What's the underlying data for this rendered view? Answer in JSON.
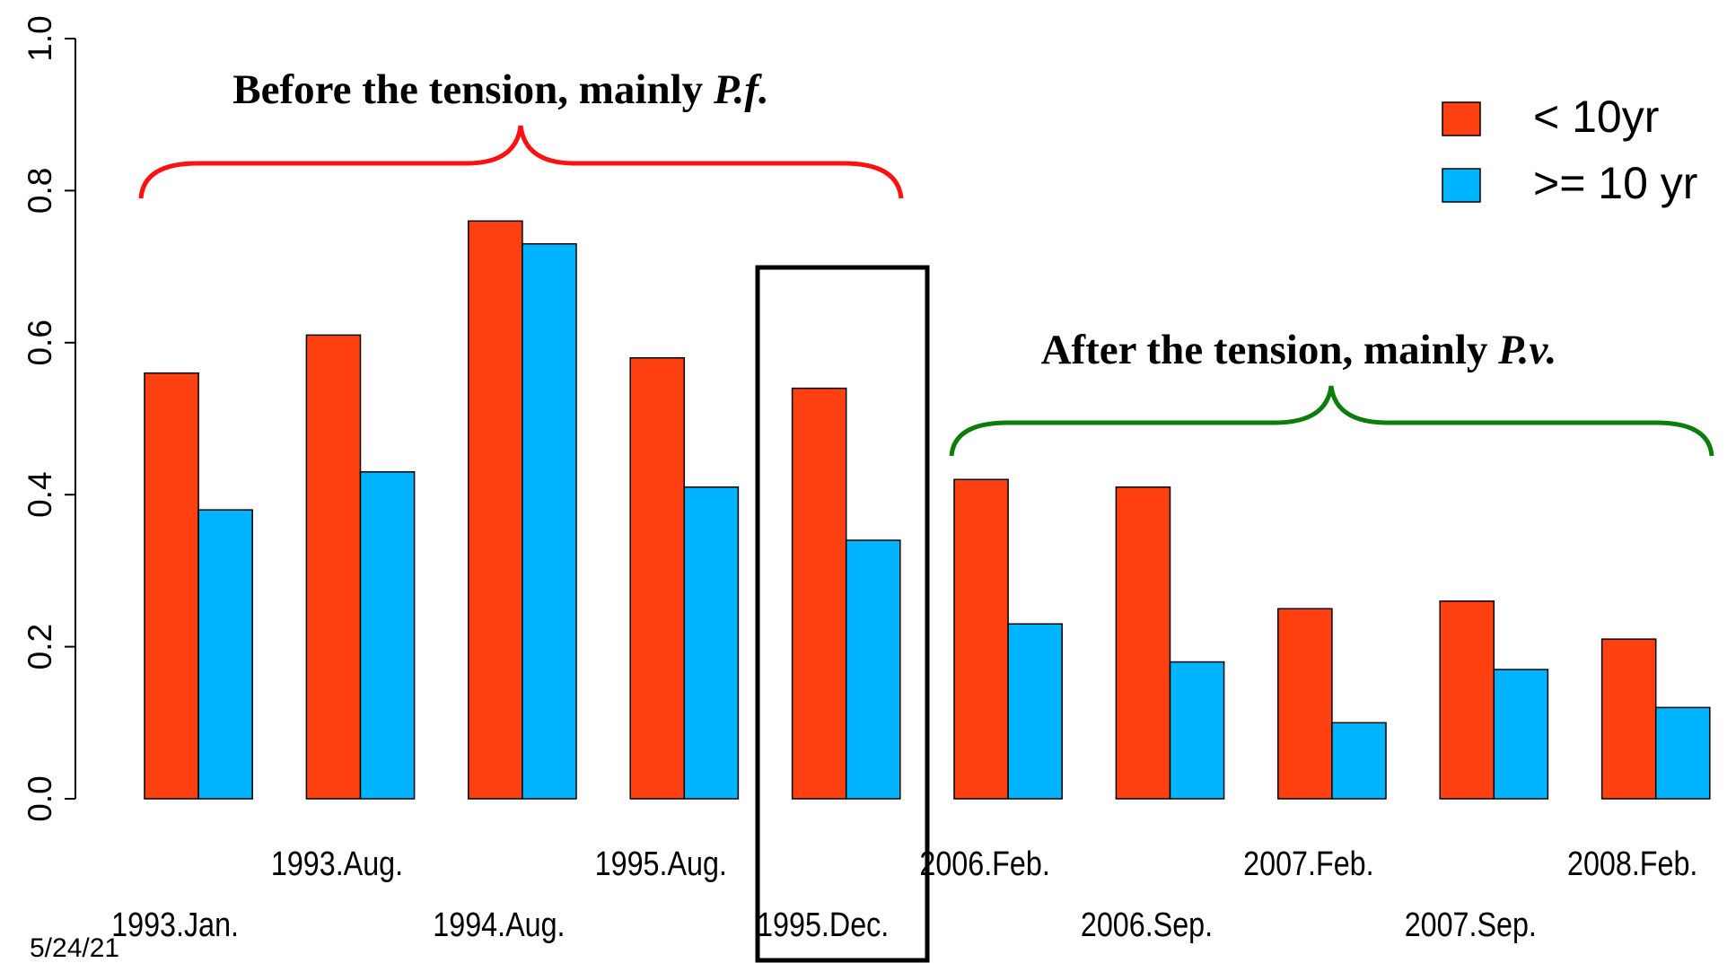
{
  "chart_data": {
    "type": "bar",
    "categories": [
      "1993.Jan.",
      "1993.Aug.",
      "1994.Aug.",
      "1995.Aug.",
      "1995.Dec.",
      "2006.Feb.",
      "2006.Sep.",
      "2007.Feb.",
      "2007.Sep.",
      "2008.Feb."
    ],
    "series": [
      {
        "name": "< 10yr",
        "color": "#ff4010",
        "values": [
          0.56,
          0.61,
          0.76,
          0.58,
          0.54,
          0.42,
          0.41,
          0.25,
          0.26,
          0.21
        ]
      },
      {
        "name": ">= 10 yr",
        "color": "#00b4ff",
        "values": [
          0.38,
          0.43,
          0.73,
          0.41,
          0.34,
          0.23,
          0.18,
          0.1,
          0.17,
          0.12
        ]
      }
    ],
    "ylim": [
      0,
      1
    ],
    "yticks": [
      {
        "value": 0,
        "label": "0.0"
      },
      0.2,
      0.4,
      0.6,
      0.8,
      {
        "value": 1,
        "label": "1.0"
      }
    ],
    "grid": false,
    "legend": "top-right",
    "annotations": [
      {
        "text": "Before the tension, mainly ",
        "emphasis": "P.f."
      },
      {
        "text": "After the tension, mainly ",
        "emphasis": "P.v."
      }
    ],
    "footer": "5/24/21"
  }
}
